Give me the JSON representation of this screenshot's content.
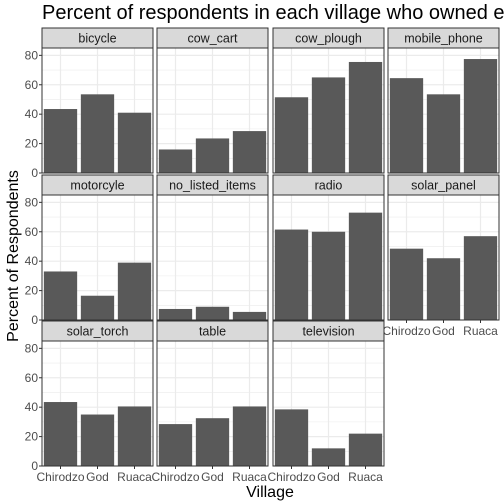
{
  "chart_data": {
    "type": "bar",
    "title": "Percent of respondents in each village who owned each item",
    "xlabel": "Village",
    "ylabel": "Percent of Respondents",
    "categories": [
      "Chirodzo",
      "God",
      "Ruaca"
    ],
    "ylim": [
      0,
      85
    ],
    "yticks": [
      0,
      20,
      40,
      60,
      80
    ],
    "grid": true,
    "facets": [
      {
        "name": "bicycle",
        "values": [
          43.5,
          53.5,
          41
        ]
      },
      {
        "name": "cow_cart",
        "values": [
          16,
          23.5,
          28.5
        ]
      },
      {
        "name": "cow_plough",
        "values": [
          51.5,
          65,
          75.5
        ]
      },
      {
        "name": "mobile_phone",
        "values": [
          64.5,
          53.5,
          77.5
        ]
      },
      {
        "name": "motorcyle",
        "values": [
          33,
          16.5,
          39
        ]
      },
      {
        "name": "no_listed_items",
        "values": [
          7.5,
          9,
          5.5
        ]
      },
      {
        "name": "radio",
        "values": [
          61.5,
          60,
          73
        ]
      },
      {
        "name": "solar_panel",
        "values": [
          48.5,
          42,
          57
        ]
      },
      {
        "name": "solar_torch",
        "values": [
          43.5,
          35,
          40.5
        ]
      },
      {
        "name": "table",
        "values": [
          28.5,
          32.5,
          40.5
        ]
      },
      {
        "name": "television",
        "values": [
          38.5,
          12,
          22
        ]
      }
    ],
    "colors": {
      "bar": "#595959",
      "panel_bg": "#ffffff",
      "strip_bg": "#d9d9d9",
      "grid": "#ebebeb",
      "border": "#333333",
      "text": "#1a1a1a",
      "tick_text": "#4d4d4d"
    }
  }
}
